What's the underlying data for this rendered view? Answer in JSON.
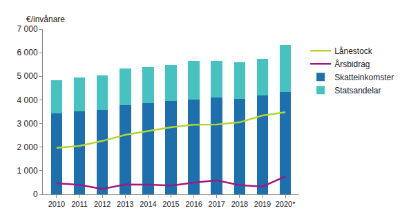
{
  "chart_data": {
    "type": "bar",
    "stacked": true,
    "y_label": "€/invånare",
    "categories": [
      "2010",
      "2011",
      "2012",
      "2013",
      "2014",
      "2015",
      "2016",
      "2017",
      "2018",
      "2019",
      "2020*"
    ],
    "series": [
      {
        "name": "Statsandelar",
        "type": "bar",
        "color": "#46c3c1",
        "values": [
          1390,
          1430,
          1480,
          1550,
          1520,
          1530,
          1630,
          1550,
          1550,
          1540,
          1990
        ]
      },
      {
        "name": "Skatteinkomster",
        "type": "bar",
        "color": "#1b70ad",
        "values": [
          3430,
          3520,
          3560,
          3780,
          3870,
          3960,
          4020,
          4100,
          4050,
          4190,
          4340
        ]
      },
      {
        "name": "Årsbidrag",
        "type": "line",
        "color": "#a3177e",
        "values": [
          470,
          400,
          230,
          420,
          410,
          370,
          500,
          590,
          390,
          330,
          760
        ]
      },
      {
        "name": "Lånestock",
        "type": "line",
        "color": "#b4d334",
        "values": [
          1970,
          2050,
          2260,
          2520,
          2680,
          2840,
          2950,
          2960,
          3050,
          3340,
          3480
        ]
      }
    ],
    "ylim": [
      0,
      7000
    ],
    "yticks": [
      0,
      {
        "value": 1000,
        "label": "1 000"
      },
      {
        "value": 2000,
        "label": "2 000"
      },
      {
        "value": 3000,
        "label": "3 000"
      },
      {
        "value": 4000,
        "label": "4 000"
      },
      {
        "value": 5000,
        "label": "5 000"
      },
      {
        "value": 6000,
        "label": "6 000"
      },
      {
        "value": 7000,
        "label": "7 000"
      }
    ],
    "grid": false,
    "legend": "right"
  }
}
